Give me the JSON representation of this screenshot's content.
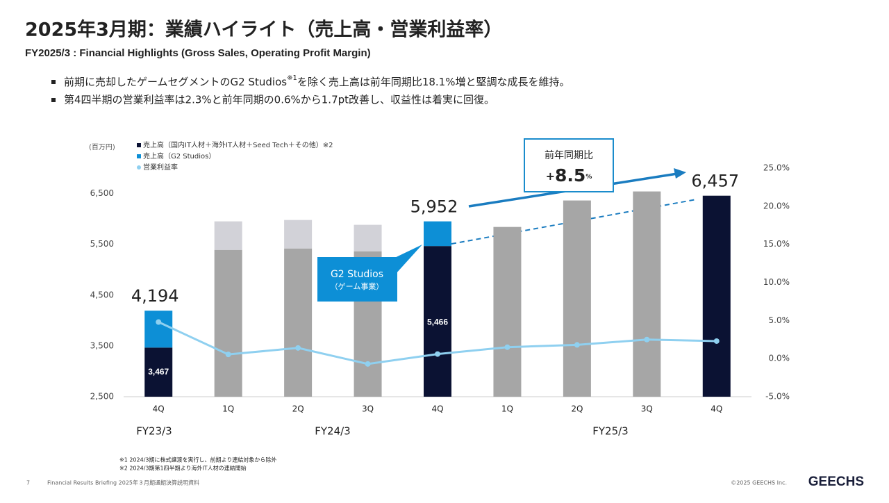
{
  "header": {
    "title": "2025年3月期：業績ハイライト（売上高・営業利益率）",
    "subtitle": "FY2025/3 : Financial Highlights (Gross Sales, Operating Profit Margin)"
  },
  "bullets": [
    {
      "before": "前期に売却したゲームセグメントのG2 Studios",
      "note": "※1",
      "after": "を除く売上高は前年同期比18.1%増と堅調な成長を維持。"
    },
    {
      "before": "第4四半期の営業利益率は2.3%と前年同期の0.6%から1.7pt改善し、収益性は着実に回復。"
    }
  ],
  "chart_data": {
    "type": "stacked-bar-line",
    "unit": "(百万円)",
    "categories": [
      "4Q",
      "1Q",
      "2Q",
      "3Q",
      "4Q",
      "1Q",
      "2Q",
      "3Q",
      "4Q"
    ],
    "groups": [
      "FY23/3",
      "FY24/3",
      "FY25/3"
    ],
    "series": [
      {
        "name": "売上高（国内IT人材＋海外IT人材＋Seed Tech＋その他）※2",
        "color": "#0b1233",
        "colors": [
          "#0b1233",
          "#a6a6a6",
          "#a6a6a6",
          "#a6a6a6",
          "#0b1233",
          "#a6a6a6",
          "#a6a6a6",
          "#a6a6a6",
          "#0b1233"
        ],
        "values": [
          3467,
          5390,
          5418,
          5363,
          5466,
          5842,
          6363,
          6541,
          6457
        ],
        "value_labels": [
          "3,467",
          null,
          null,
          null,
          "5,466",
          null,
          null,
          null,
          null
        ]
      },
      {
        "name": "売上高（G2 Studios）",
        "color": "#0d8fd6",
        "colors": [
          "#0d8fd6",
          "#d2d2d8",
          "#d2d2d8",
          "#d2d2d8",
          "#0d8fd6",
          null,
          null,
          null,
          null
        ],
        "values": [
          727,
          562,
          561,
          521,
          486,
          null,
          null,
          null,
          null
        ]
      },
      {
        "name": "営業利益率",
        "color": "#8fd0f0",
        "axis": "y2",
        "values": [
          4.8,
          0.55,
          1.4,
          -0.7,
          0.6,
          1.5,
          1.8,
          2.5,
          2.3
        ]
      }
    ],
    "total_labels": [
      "4,194",
      null,
      null,
      null,
      "5,952",
      null,
      null,
      null,
      "6,457"
    ],
    "ylim": [
      2500,
      7000
    ],
    "yticks": [
      {
        "value": 2500,
        "label": "2,500"
      },
      {
        "value": 3500,
        "label": "3,500"
      },
      {
        "value": 4500,
        "label": "4,500"
      },
      {
        "value": 5500,
        "label": "5,500"
      },
      {
        "value": 6500,
        "label": "6,500"
      }
    ],
    "y2lim": [
      -5,
      25
    ],
    "y2ticks": [
      {
        "value": -5,
        "label": "-5.0%"
      },
      {
        "value": 0,
        "label": "0.0%"
      },
      {
        "value": 5,
        "label": "5.0%"
      },
      {
        "value": 10,
        "label": "10.0%"
      },
      {
        "value": 15,
        "label": "15.0%"
      },
      {
        "value": 20,
        "label": "20.0%"
      },
      {
        "value": 25,
        "label": "25.0%"
      }
    ],
    "callout": {
      "title": "G2 Studios",
      "sub": "（ゲーム事業）"
    },
    "growth": {
      "label": "前年同期比",
      "sign": "+",
      "value": "8.5",
      "unit": "%"
    }
  },
  "footnotes": [
    "※1 2024/3期に株式譲渡を実行し、前期より連結対象から除外",
    "※2 2024/3期第1四半期より海外IT人材の連結開始"
  ],
  "footer": {
    "page": "7",
    "doc": "Financial Results Briefing 2025年３月期通期決算説明資料",
    "copyright": "©2025 GEECHS Inc.",
    "logo": "GEECHS"
  }
}
